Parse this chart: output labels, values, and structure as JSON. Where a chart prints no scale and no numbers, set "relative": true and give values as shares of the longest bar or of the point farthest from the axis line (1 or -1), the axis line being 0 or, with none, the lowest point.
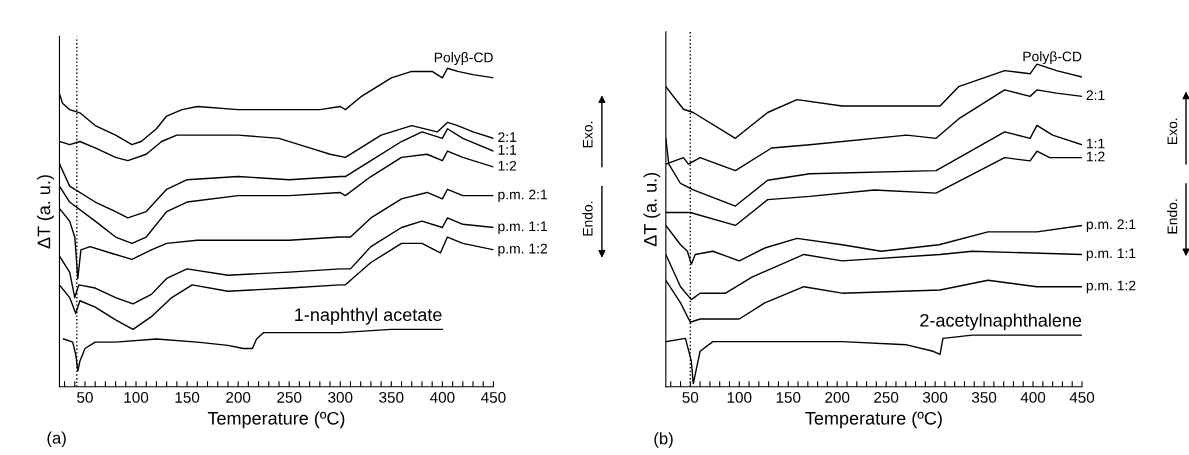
{
  "chart_data": [
    {
      "type": "line",
      "relative": true,
      "xlabel": "Temperature (ºC)",
      "ylabel": "ΔT (a. u.)",
      "annotations": [
        "(a)",
        "Exo.",
        "Endo."
      ],
      "xlim": [
        25,
        450
      ],
      "xticks": [
        {
          "value": 30,
          "label": null
        },
        {
          "value": 40,
          "label": null
        },
        50,
        {
          "value": 60,
          "label": null
        },
        {
          "value": 70,
          "label": null
        },
        {
          "value": 80,
          "label": null
        },
        {
          "value": 90,
          "label": null
        },
        100,
        {
          "value": 110,
          "label": null
        },
        {
          "value": 120,
          "label": null
        },
        {
          "value": 130,
          "label": null
        },
        {
          "value": 140,
          "label": null
        },
        150,
        {
          "value": 160,
          "label": null
        },
        {
          "value": 170,
          "label": null
        },
        {
          "value": 180,
          "label": null
        },
        {
          "value": 190,
          "label": null
        },
        200,
        {
          "value": 210,
          "label": null
        },
        {
          "value": 220,
          "label": null
        },
        {
          "value": 230,
          "label": null
        },
        {
          "value": 240,
          "label": null
        },
        250,
        {
          "value": 260,
          "label": null
        },
        {
          "value": 270,
          "label": null
        },
        {
          "value": 280,
          "label": null
        },
        {
          "value": 290,
          "label": null
        },
        300,
        {
          "value": 310,
          "label": null
        },
        {
          "value": 320,
          "label": null
        },
        {
          "value": 330,
          "label": null
        },
        {
          "value": 340,
          "label": null
        },
        350,
        {
          "value": 360,
          "label": null
        },
        {
          "value": 370,
          "label": null
        },
        {
          "value": 380,
          "label": null
        },
        {
          "value": 390,
          "label": null
        },
        400,
        {
          "value": 410,
          "label": null
        },
        {
          "value": 420,
          "label": null
        },
        {
          "value": 430,
          "label": null
        },
        {
          "value": 440,
          "label": null
        },
        450
      ],
      "tick_labels": "x",
      "grid": false,
      "marker": "none",
      "line_style": "solid",
      "ref_lines": [
        {
          "axis": "x",
          "value": 42,
          "label": null,
          "color": "#000000",
          "line_style": "dotted"
        }
      ],
      "series": [
        {
          "name": "Polyβ-CD",
          "color": "#000000",
          "x": [
            25,
            28,
            35,
            45,
            60,
            80,
            96,
            105,
            120,
            130,
            145,
            160,
            200,
            240,
            280,
            300,
            305,
            320,
            335,
            350,
            370,
            390,
            400,
            405,
            415,
            430,
            450
          ],
          "values": [
            0.92,
            0.89,
            0.87,
            0.86,
            0.82,
            0.79,
            0.76,
            0.77,
            0.81,
            0.85,
            0.87,
            0.88,
            0.87,
            0.87,
            0.87,
            0.88,
            0.87,
            0.91,
            0.94,
            0.97,
            0.99,
            0.99,
            0.97,
            1.0,
            0.99,
            0.98,
            0.97
          ]
        },
        {
          "name": "2:1",
          "color": "#000000",
          "x": [
            25,
            35,
            45,
            60,
            80,
            92,
            110,
            125,
            140,
            160,
            200,
            240,
            270,
            290,
            305,
            320,
            340,
            370,
            395,
            405,
            415,
            430,
            450
          ],
          "values": [
            0.77,
            0.76,
            0.77,
            0.75,
            0.72,
            0.71,
            0.73,
            0.77,
            0.79,
            0.79,
            0.79,
            0.78,
            0.75,
            0.73,
            0.72,
            0.75,
            0.79,
            0.82,
            0.8,
            0.83,
            0.82,
            0.8,
            0.78
          ]
        },
        {
          "name": "1:1",
          "color": "#000000",
          "x": [
            25,
            35,
            60,
            80,
            92,
            110,
            130,
            150,
            200,
            250,
            300,
            305,
            330,
            360,
            380,
            400,
            405,
            420,
            450
          ],
          "values": [
            0.7,
            0.63,
            0.58,
            0.55,
            0.53,
            0.55,
            0.62,
            0.65,
            0.66,
            0.65,
            0.66,
            0.66,
            0.71,
            0.77,
            0.8,
            0.78,
            0.81,
            0.78,
            0.74
          ]
        },
        {
          "name": "1:2",
          "color": "#000000",
          "x": [
            25,
            35,
            60,
            80,
            96,
            110,
            130,
            150,
            200,
            250,
            300,
            305,
            330,
            360,
            385,
            400,
            405,
            420,
            450
          ],
          "values": [
            0.63,
            0.58,
            0.52,
            0.47,
            0.45,
            0.47,
            0.55,
            0.58,
            0.6,
            0.6,
            0.61,
            0.6,
            0.66,
            0.72,
            0.73,
            0.71,
            0.74,
            0.72,
            0.69
          ]
        },
        {
          "name": "p.m. 2:1",
          "color": "#000000",
          "x": [
            25,
            35,
            40,
            43,
            46,
            55,
            75,
            96,
            115,
            130,
            160,
            200,
            250,
            300,
            310,
            330,
            360,
            385,
            400,
            405,
            420,
            450
          ],
          "values": [
            0.56,
            0.52,
            0.47,
            0.34,
            0.43,
            0.44,
            0.42,
            0.4,
            0.43,
            0.45,
            0.46,
            0.46,
            0.46,
            0.47,
            0.47,
            0.53,
            0.59,
            0.61,
            0.59,
            0.62,
            0.6,
            0.6
          ]
        },
        {
          "name": "p.m. 1:1",
          "color": "#000000",
          "x": [
            25,
            35,
            40,
            44,
            60,
            80,
            97,
            115,
            130,
            150,
            190,
            250,
            300,
            310,
            330,
            360,
            380,
            400,
            405,
            420,
            450
          ],
          "values": [
            0.41,
            0.36,
            0.28,
            0.32,
            0.31,
            0.28,
            0.26,
            0.29,
            0.34,
            0.37,
            0.35,
            0.36,
            0.37,
            0.37,
            0.44,
            0.5,
            0.52,
            0.5,
            0.53,
            0.51,
            0.5
          ]
        },
        {
          "name": "p.m. 1:2",
          "color": "#000000",
          "x": [
            25,
            35,
            41,
            45,
            60,
            80,
            97,
            115,
            135,
            155,
            190,
            250,
            300,
            305,
            330,
            360,
            380,
            398,
            405,
            420,
            450
          ],
          "values": [
            0.32,
            0.28,
            0.23,
            0.27,
            0.25,
            0.21,
            0.18,
            0.22,
            0.28,
            0.32,
            0.3,
            0.31,
            0.32,
            0.32,
            0.39,
            0.45,
            0.45,
            0.42,
            0.47,
            0.45,
            0.43
          ]
        },
        {
          "name": "1-naphthyl acetate",
          "color": "#000000",
          "x": [
            29,
            38,
            41,
            43,
            45,
            50,
            60,
            80,
            120,
            160,
            190,
            205,
            214,
            218,
            225,
            240,
            300,
            350,
            400
          ],
          "values": [
            0.15,
            0.14,
            0.1,
            0.05,
            0.08,
            0.12,
            0.14,
            0.14,
            0.15,
            0.14,
            0.13,
            0.12,
            0.12,
            0.15,
            0.17,
            0.17,
            0.17,
            0.18,
            0.18
          ]
        }
      ]
    },
    {
      "type": "line",
      "relative": true,
      "xlabel": "Temperature (ºC)",
      "ylabel": "ΔT (a. u.)",
      "annotations": [
        "(b)",
        "Exo.",
        "Endo."
      ],
      "xlim": [
        25,
        450
      ],
      "xticks": [
        {
          "value": 30,
          "label": null
        },
        {
          "value": 40,
          "label": null
        },
        50,
        {
          "value": 60,
          "label": null
        },
        {
          "value": 70,
          "label": null
        },
        {
          "value": 80,
          "label": null
        },
        {
          "value": 90,
          "label": null
        },
        100,
        {
          "value": 110,
          "label": null
        },
        {
          "value": 120,
          "label": null
        },
        {
          "value": 130,
          "label": null
        },
        {
          "value": 140,
          "label": null
        },
        150,
        {
          "value": 160,
          "label": null
        },
        {
          "value": 170,
          "label": null
        },
        {
          "value": 180,
          "label": null
        },
        {
          "value": 190,
          "label": null
        },
        200,
        {
          "value": 210,
          "label": null
        },
        {
          "value": 220,
          "label": null
        },
        {
          "value": 230,
          "label": null
        },
        {
          "value": 240,
          "label": null
        },
        250,
        {
          "value": 260,
          "label": null
        },
        {
          "value": 270,
          "label": null
        },
        {
          "value": 280,
          "label": null
        },
        {
          "value": 290,
          "label": null
        },
        300,
        {
          "value": 310,
          "label": null
        },
        {
          "value": 320,
          "label": null
        },
        {
          "value": 330,
          "label": null
        },
        {
          "value": 340,
          "label": null
        },
        350,
        {
          "value": 360,
          "label": null
        },
        {
          "value": 370,
          "label": null
        },
        {
          "value": 380,
          "label": null
        },
        {
          "value": 390,
          "label": null
        },
        400,
        {
          "value": 410,
          "label": null
        },
        {
          "value": 420,
          "label": null
        },
        {
          "value": 430,
          "label": null
        },
        {
          "value": 440,
          "label": null
        },
        450
      ],
      "tick_labels": "x",
      "grid": false,
      "marker": "none",
      "line_style": "solid",
      "ref_lines": [
        {
          "axis": "x",
          "value": 50,
          "label": null,
          "color": "#000000",
          "line_style": "dotted"
        }
      ],
      "series": [
        {
          "name": "Polyβ-CD",
          "color": "#000000",
          "x": [
            25,
            43,
            53,
            96,
            129,
            159,
            205,
            301,
            305,
            324,
            371,
            397,
            404,
            424,
            450
          ],
          "values": [
            0.93,
            0.86,
            0.85,
            0.77,
            0.85,
            0.89,
            0.87,
            0.87,
            0.87,
            0.93,
            0.98,
            0.97,
            1.0,
            0.98,
            0.96
          ]
        },
        {
          "name": "2:1",
          "color": "#000000",
          "x": [
            25,
            43,
            48,
            60,
            96,
            133,
            172,
            271,
            301,
            324,
            371,
            397,
            404,
            424,
            450
          ],
          "values": [
            0.69,
            0.71,
            0.69,
            0.71,
            0.67,
            0.74,
            0.75,
            0.78,
            0.77,
            0.83,
            0.92,
            0.9,
            0.92,
            0.91,
            0.9
          ]
        },
        {
          "name": "1:1",
          "color": "#000000",
          "x": [
            25,
            28,
            40,
            53,
            96,
            129,
            172,
            301,
            371,
            397,
            404,
            420,
            450
          ],
          "values": [
            0.77,
            0.69,
            0.63,
            0.61,
            0.56,
            0.64,
            0.66,
            0.67,
            0.79,
            0.77,
            0.81,
            0.78,
            0.75
          ]
        },
        {
          "name": "1:2",
          "color": "#000000",
          "x": [
            25,
            50,
            96,
            129,
            172,
            238,
            301,
            371,
            397,
            404,
            417,
            450
          ],
          "values": [
            0.54,
            0.54,
            0.5,
            0.58,
            0.59,
            0.61,
            0.6,
            0.71,
            0.7,
            0.73,
            0.71,
            0.71
          ]
        },
        {
          "name": "p.m. 2:1",
          "color": "#000000",
          "x": [
            25,
            40,
            47,
            51,
            55,
            73,
            100,
            126,
            159,
            205,
            245,
            304,
            354,
            404,
            450
          ],
          "values": [
            0.5,
            0.44,
            0.42,
            0.38,
            0.41,
            0.42,
            0.39,
            0.43,
            0.46,
            0.44,
            0.42,
            0.44,
            0.48,
            0.48,
            0.5
          ]
        },
        {
          "name": "p.m. 1:1",
          "color": "#000000",
          "x": [
            25,
            40,
            51,
            60,
            86,
            113,
            166,
            205,
            305,
            338,
            450
          ],
          "values": [
            0.41,
            0.31,
            0.27,
            0.29,
            0.29,
            0.34,
            0.41,
            0.39,
            0.41,
            0.42,
            0.41
          ]
        },
        {
          "name": "p.m. 1:2",
          "color": "#000000",
          "x": [
            25,
            40,
            50,
            60,
            100,
            126,
            166,
            205,
            305,
            354,
            404,
            450
          ],
          "values": [
            0.33,
            0.26,
            0.2,
            0.21,
            0.21,
            0.26,
            0.31,
            0.29,
            0.3,
            0.33,
            0.31,
            0.31
          ]
        },
        {
          "name": "2-acetylnaphthalene",
          "color": "#000000",
          "x": [
            25,
            45,
            51,
            53,
            60,
            73,
            205,
            271,
            298,
            305,
            308,
            338,
            450
          ],
          "values": [
            0.14,
            0.15,
            0.08,
            0.01,
            0.11,
            0.14,
            0.14,
            0.13,
            0.11,
            0.1,
            0.15,
            0.16,
            0.16
          ]
        }
      ]
    }
  ]
}
